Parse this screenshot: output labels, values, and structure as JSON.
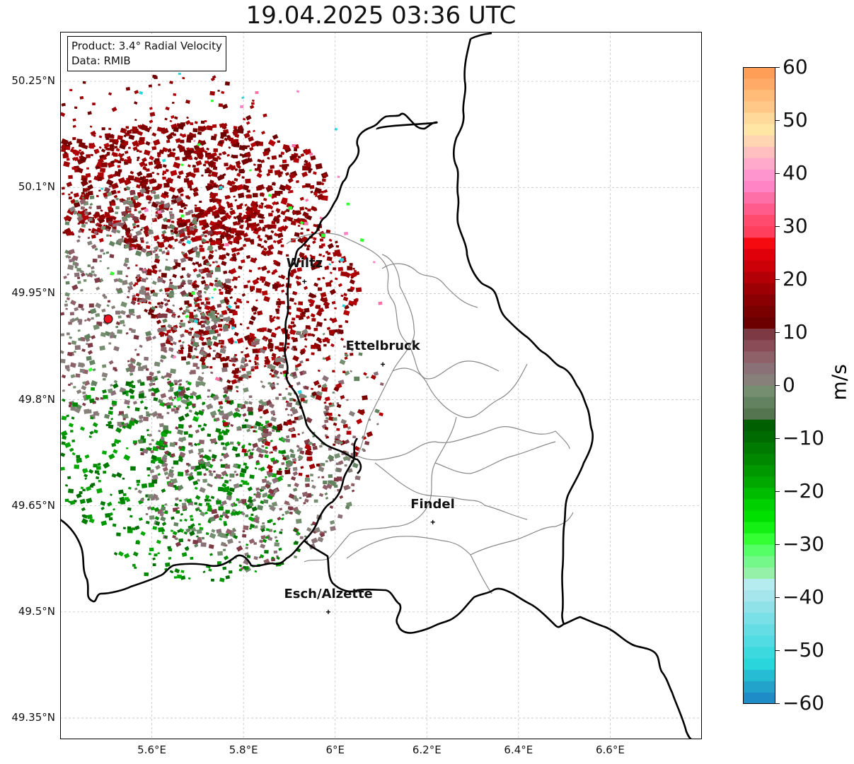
{
  "title": "19.04.2025 03:36 UTC",
  "info": {
    "product": "Product: 3.4° Radial Velocity",
    "data": "Data: RMIB"
  },
  "map": {
    "lon_range": [
      5.4,
      6.8
    ],
    "lat_range": [
      49.32,
      50.32
    ],
    "x_ticks": [
      "5.6°E",
      "5.8°E",
      "6°E",
      "6.2°E",
      "6.4°E",
      "6.6°E"
    ],
    "y_ticks": [
      "50.25°N",
      "50.1°N",
      "49.95°N",
      "49.8°N",
      "49.65°N",
      "49.5°N",
      "49.35°N"
    ],
    "grid": true,
    "radar_site": {
      "lon": 5.505,
      "lat": 49.914,
      "color": "#e8141e"
    },
    "cities": [
      {
        "name": "Wiltz",
        "lon": 5.933,
        "lat": 49.967
      },
      {
        "name": "Ettelbruck",
        "lon": 6.104,
        "lat": 49.85
      },
      {
        "name": "Findel",
        "lon": 6.213,
        "lat": 49.627
      },
      {
        "name": "Esch/Alzette",
        "lon": 5.985,
        "lat": 49.5
      }
    ]
  },
  "colorbar": {
    "label": "m/s",
    "range": [
      -60,
      60
    ],
    "ticks": [
      "60",
      "50",
      "40",
      "30",
      "20",
      "10",
      "0",
      "−10",
      "−20",
      "−30",
      "−40",
      "−50",
      "−60"
    ],
    "colors_top_to_bottom": [
      "#ff9e57",
      "#ffaa66",
      "#ffbb77",
      "#ffc888",
      "#ffd999",
      "#ffe6a5",
      "#ffd5b2",
      "#ffbec0",
      "#ffaacb",
      "#ff95cf",
      "#ff84c5",
      "#ff6fa7",
      "#ff5c8c",
      "#ff4c6e",
      "#ff3f5b",
      "#f50a10",
      "#e0000a",
      "#cc0008",
      "#b30006",
      "#9d0004",
      "#8a0002",
      "#7a0000",
      "#6c0000",
      "#7e3a44",
      "#8a4d58",
      "#8e6068",
      "#8a7077",
      "#87807a",
      "#758e70",
      "#628260",
      "#557550",
      "#005f00",
      "#006b00",
      "#007a00",
      "#008800",
      "#009800",
      "#00a800",
      "#00bc00",
      "#00d000",
      "#00e000",
      "#14f014",
      "#33ff33",
      "#55ff66",
      "#75f88a",
      "#95f0a8",
      "#b4ecef",
      "#a4e6ec",
      "#8ee2e8",
      "#78e0e6",
      "#64dee4",
      "#50dce2",
      "#3cdadf",
      "#2ad6dc",
      "#26bcd4",
      "#21a3cc",
      "#1e8cc6"
    ]
  }
}
